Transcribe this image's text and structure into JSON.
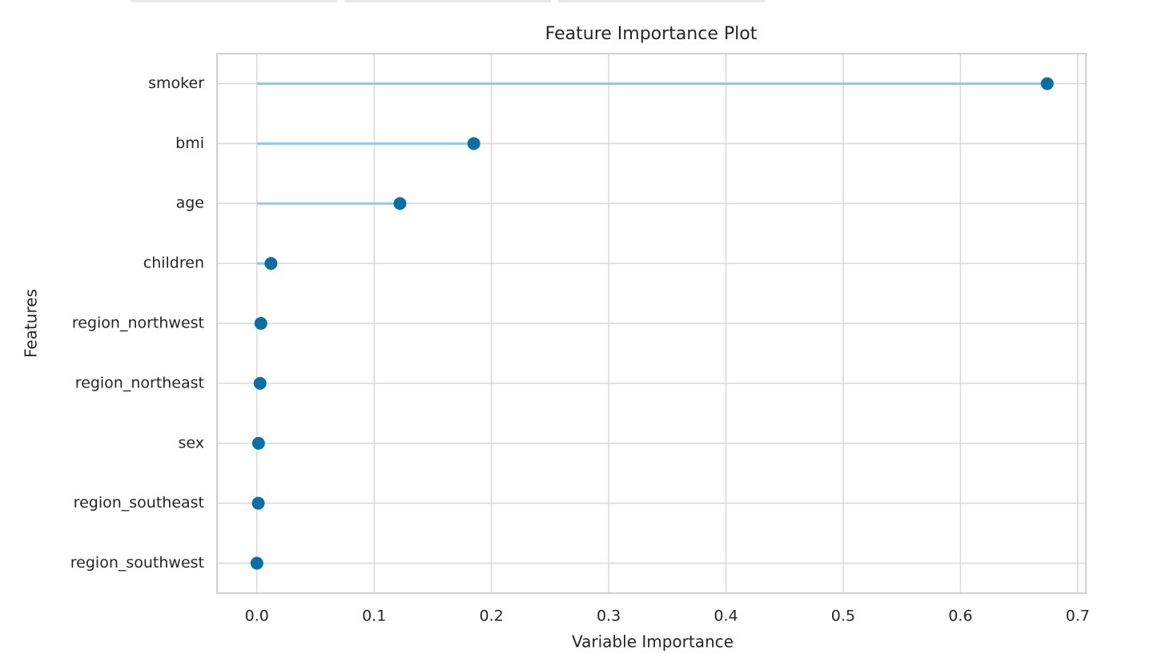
{
  "chart_data": {
    "type": "lollipop",
    "title": "Feature Importance Plot",
    "xlabel": "Variable Importance",
    "ylabel": "Features",
    "categories": [
      "smoker",
      "bmi",
      "age",
      "children",
      "region_northwest",
      "region_northeast",
      "sex",
      "region_southeast",
      "region_southwest"
    ],
    "values": [
      0.674,
      0.185,
      0.122,
      0.012,
      0.0034,
      0.0027,
      0.0014,
      0.0012,
      0.0
    ],
    "line_color": "#87ceeb",
    "color": "#0b6fa4",
    "xlim": [
      -0.034,
      0.707
    ],
    "xticks": [
      {
        "value": 0,
        "label": "0.0"
      },
      0.1,
      0.2,
      0.3,
      0.4,
      0.5,
      0.6,
      0.7
    ],
    "grid": true
  }
}
